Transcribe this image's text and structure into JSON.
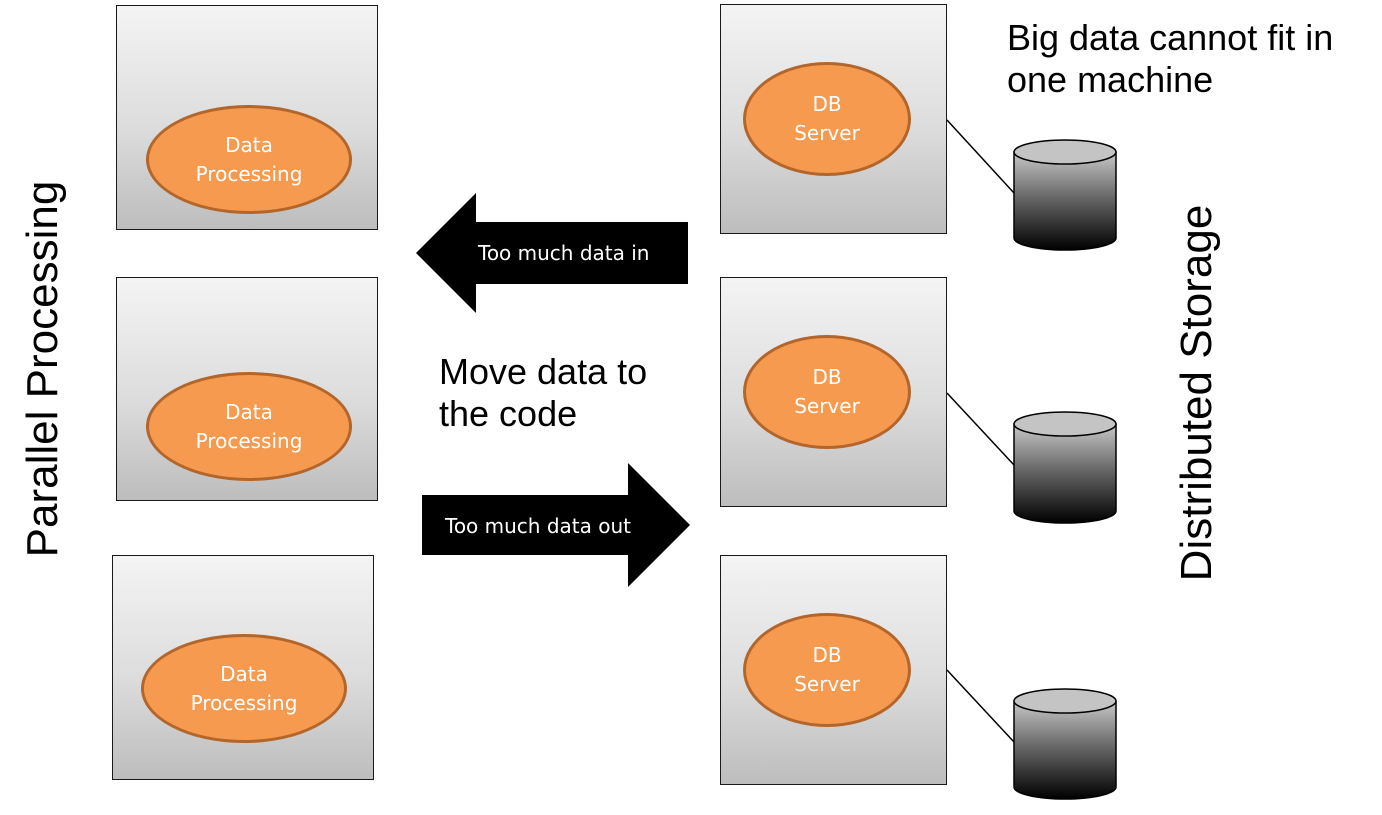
{
  "left_heading": "Parallel Processing",
  "right_heading": "Distributed Storage",
  "processing_nodes": [
    {
      "label": "Data\nProcessing"
    },
    {
      "label": "Data\nProcessing"
    },
    {
      "label": "Data\nProcessing"
    }
  ],
  "storage_nodes": [
    {
      "label": "DB\nServer"
    },
    {
      "label": "DB\nServer"
    },
    {
      "label": "DB\nServer"
    }
  ],
  "arrow_in_label": "Too much data in",
  "arrow_out_label": "Too much data out",
  "center_caption": "Move data to\nthe code",
  "top_caption": "Big data cannot fit in\none machine",
  "colors": {
    "ellipse_fill": "#f59a4e",
    "ellipse_border": "#b3662b",
    "arrow_fill": "#000000"
  }
}
